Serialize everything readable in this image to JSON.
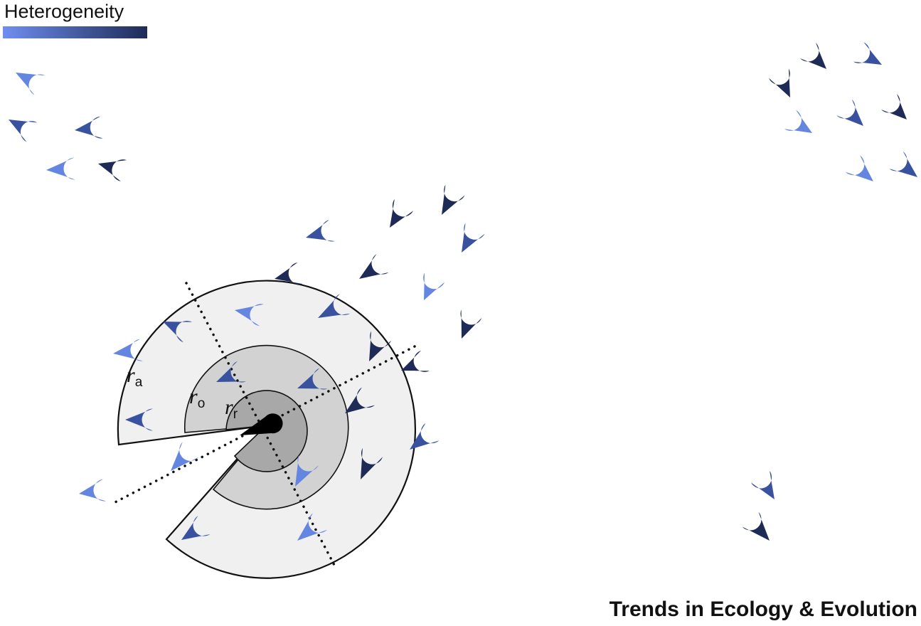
{
  "legend": {
    "title": "Heterogeneity",
    "gradient_start": "#6f8ef0",
    "gradient_end": "#1e2b57"
  },
  "zones": {
    "attraction_label": {
      "main": "r",
      "sub": "a"
    },
    "orientation_label": {
      "main": "r",
      "sub": "o"
    },
    "repulsion_label": {
      "main": "r",
      "sub": "r"
    },
    "colors": {
      "attraction": "#f0f0f0",
      "orientation": "#d2d2d2",
      "repulsion": "#a8a8a8"
    }
  },
  "agent_colors": {
    "light": "#6586e0",
    "medium": "#3852a0",
    "dark": "#1e2b57"
  },
  "credit": "Trends in Ecology & Evolution"
}
